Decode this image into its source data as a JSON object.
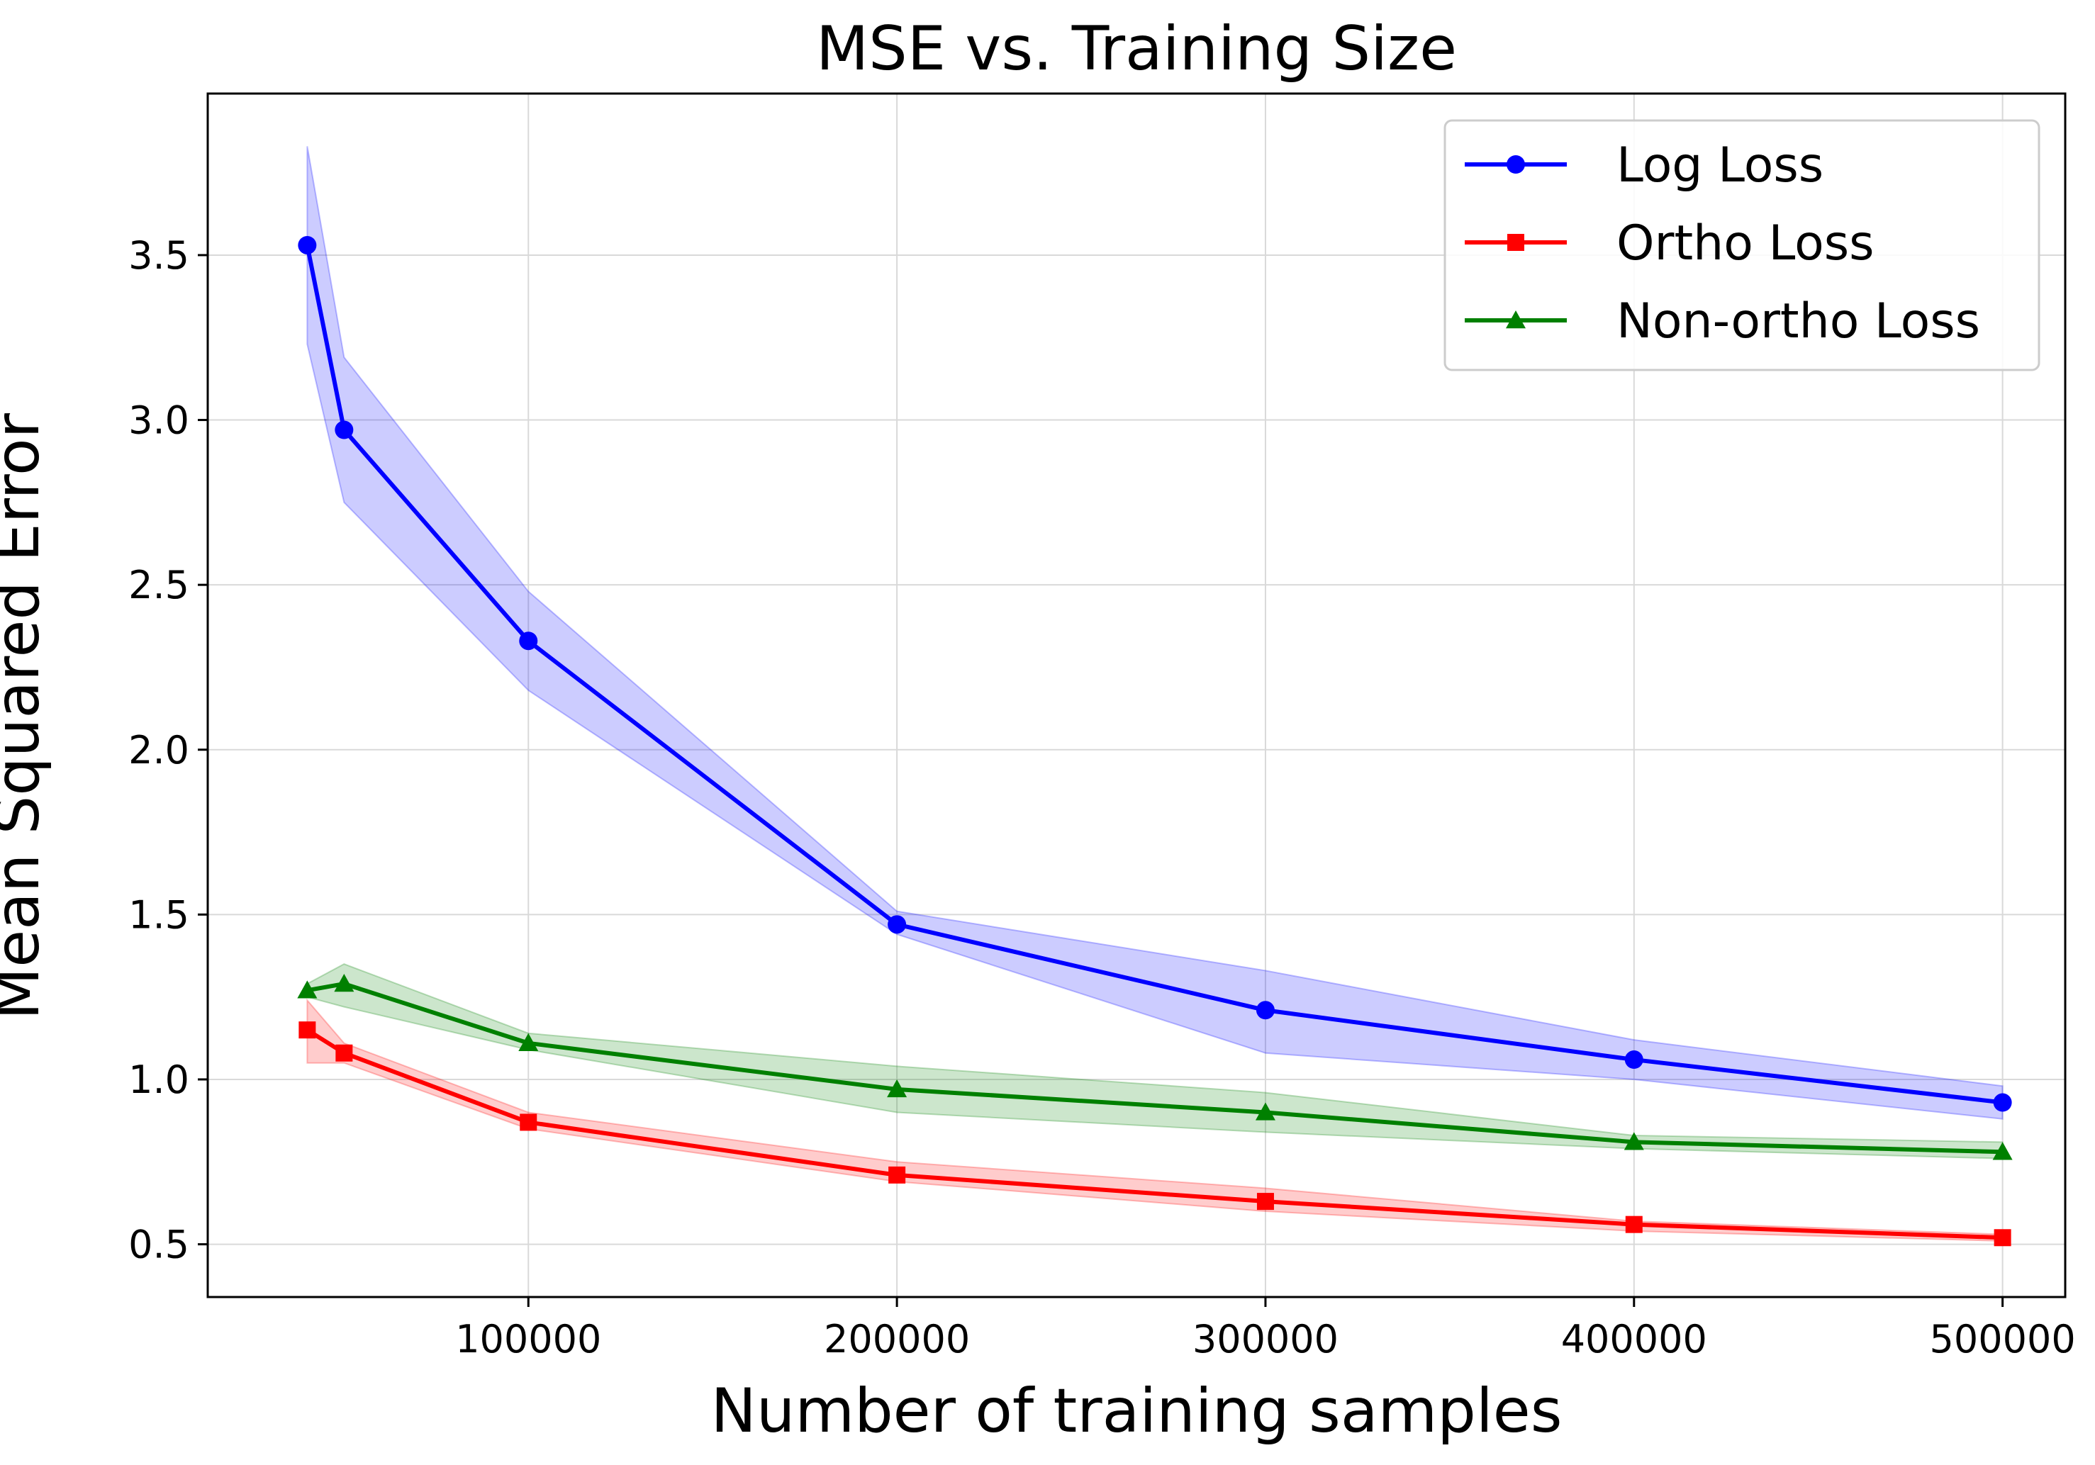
{
  "chart_data": {
    "type": "line",
    "title": "MSE vs. Training Size",
    "xlabel": "Number of training samples",
    "ylabel": "Mean Squared Error",
    "xlim": [
      13000,
      517000
    ],
    "ylim": [
      0.34,
      3.99
    ],
    "xticks": [
      100000,
      200000,
      300000,
      400000,
      500000
    ],
    "xtick_labels": [
      "100000",
      "200000",
      "300000",
      "400000",
      "500000"
    ],
    "yticks": [
      0.5,
      1.0,
      1.5,
      2.0,
      2.5,
      3.0,
      3.5
    ],
    "ytick_labels": [
      "0.5",
      "1.0",
      "1.5",
      "2.0",
      "2.5",
      "3.0",
      "3.5"
    ],
    "grid": true,
    "legend_position": "top-right",
    "x": [
      40000,
      50000,
      100000,
      200000,
      300000,
      400000,
      500000
    ],
    "series": [
      {
        "name": "Log Loss",
        "color": "#0000ff",
        "marker": "circle",
        "values": [
          3.53,
          2.97,
          2.33,
          1.47,
          1.21,
          1.06,
          0.93
        ],
        "lower": [
          3.23,
          2.75,
          2.18,
          1.44,
          1.08,
          1.0,
          0.88
        ],
        "upper": [
          3.83,
          3.19,
          2.48,
          1.51,
          1.33,
          1.12,
          0.98
        ]
      },
      {
        "name": "Ortho Loss",
        "color": "#ff0000",
        "marker": "square",
        "values": [
          1.15,
          1.08,
          0.87,
          0.71,
          0.63,
          0.56,
          0.52
        ],
        "lower": [
          1.05,
          1.05,
          0.85,
          0.69,
          0.6,
          0.54,
          0.51
        ],
        "upper": [
          1.24,
          1.11,
          0.9,
          0.75,
          0.67,
          0.57,
          0.53
        ]
      },
      {
        "name": "Non-ortho Loss",
        "color": "#008000",
        "marker": "triangle",
        "values": [
          1.27,
          1.29,
          1.11,
          0.97,
          0.9,
          0.81,
          0.78
        ],
        "lower": [
          1.25,
          1.22,
          1.09,
          0.9,
          0.84,
          0.79,
          0.76
        ],
        "upper": [
          1.29,
          1.35,
          1.14,
          1.04,
          0.96,
          0.83,
          0.81
        ]
      }
    ]
  }
}
